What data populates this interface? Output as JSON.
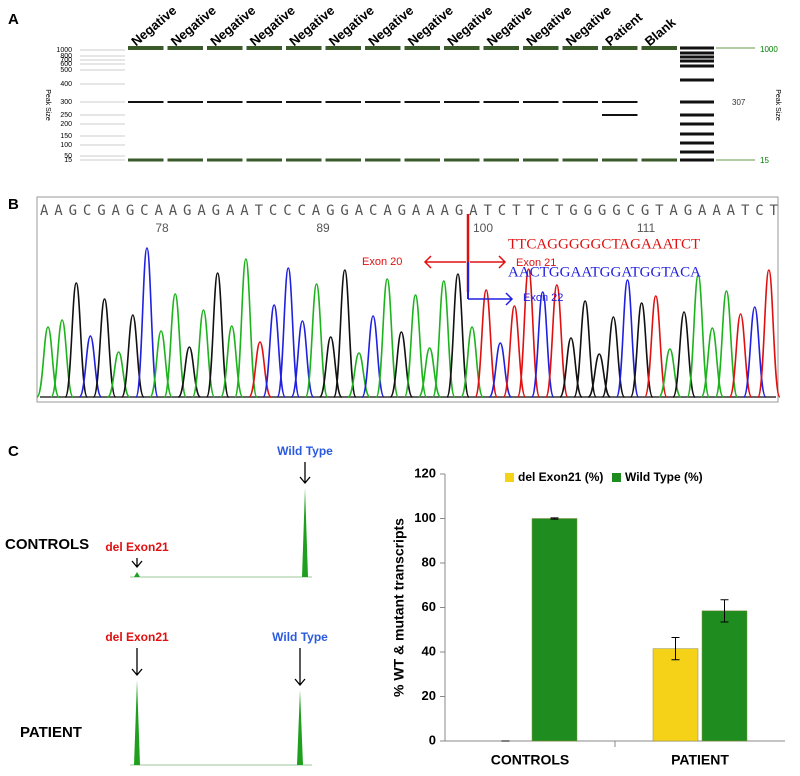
{
  "panel_a": {
    "letter": "A",
    "lanes": [
      "Negative",
      "Negative",
      "Negative",
      "Negative",
      "Negative",
      "Negative",
      "Negative",
      "Negative",
      "Negative",
      "Negative",
      "Negative",
      "Negative",
      "Patient",
      "Blank"
    ],
    "scale_labels": [
      "1000",
      "800",
      "700",
      "600",
      "500",
      "400",
      "300",
      "250",
      "200",
      "150",
      "100",
      "50",
      "15"
    ],
    "axis_label": "Peak Size",
    "right_labels": [
      "1000",
      "307",
      "15"
    ]
  },
  "panel_b": {
    "letter": "B",
    "sequence": "AAGCGAGCAAGAGAATCCCAGGACAGAAAGATCTTCTGGGGCGTAGAAATCT",
    "positions": [
      "78",
      "89",
      "100",
      "111"
    ],
    "exon_left": "Exon 20",
    "exon_right": "Exon 21",
    "seq_red": "TTCAGGGGGCTAGAAATCT",
    "seq_blue": "AACTGGAATGGATGGTACA",
    "exon_down": "Exon 22"
  },
  "panel_c": {
    "letter": "C",
    "traces": [
      {
        "name": "CONTROLS",
        "mutant_label": "del Exon21",
        "wt_label": "Wild Type"
      },
      {
        "name": "PATIENT",
        "mutant_label": "del Exon21",
        "wt_label": "Wild Type"
      }
    ]
  },
  "chart_data": {
    "type": "bar",
    "y_label": "% WT & mutant transcripts",
    "categories": [
      "CONTROLS",
      "PATIENT"
    ],
    "series": [
      {
        "name": "del Exon21 (%)",
        "color": "#f5d218",
        "values": [
          0,
          41.5
        ],
        "errors": [
          0,
          5
        ]
      },
      {
        "name": "Wild Type (%)",
        "color": "#1e8c1e",
        "values": [
          100,
          58.5
        ],
        "errors": [
          0.3,
          5
        ]
      }
    ],
    "ylim": [
      0,
      120
    ],
    "yticks": [
      0,
      20,
      40,
      60,
      80,
      100,
      120
    ],
    "legend": "top"
  }
}
